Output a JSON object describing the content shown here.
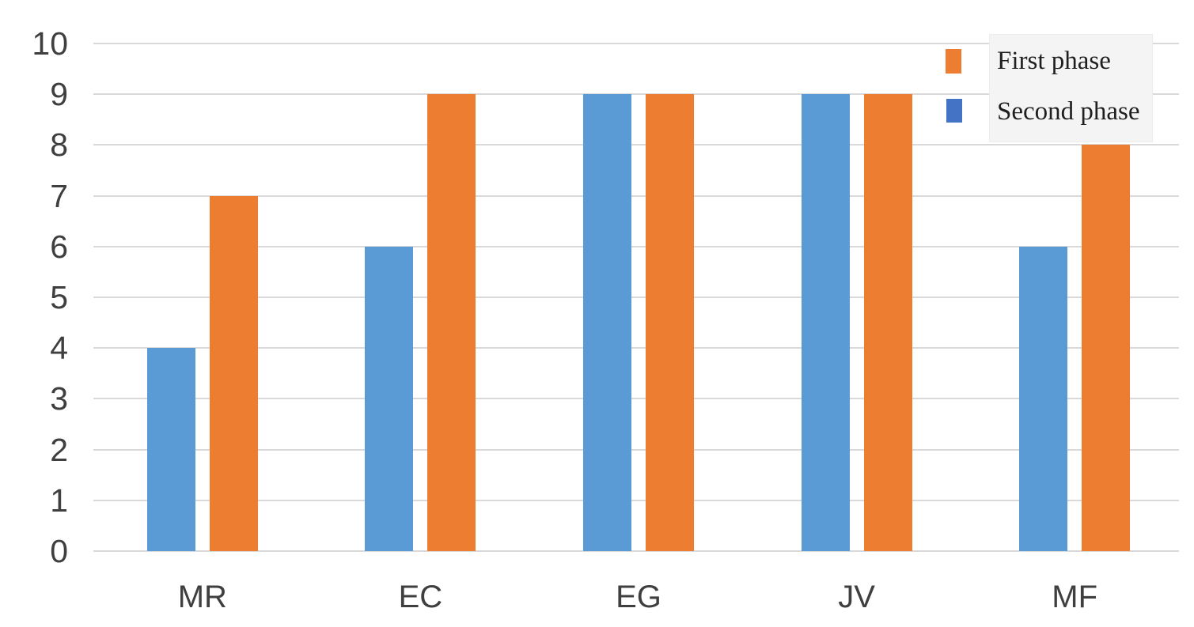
{
  "chart_data": {
    "type": "bar",
    "title": "",
    "xlabel": "",
    "ylabel": "",
    "categories": [
      "MR",
      "EC",
      "EG",
      "JV",
      "MF"
    ],
    "series": [
      {
        "name": "First phase",
        "color": "#ED7D31",
        "values": [
          7,
          9,
          9,
          9,
          8
        ]
      },
      {
        "name": "Second phase",
        "color": "#5B9BD5",
        "values": [
          4,
          6,
          9,
          9,
          6
        ]
      }
    ],
    "ylim": [
      0,
      10
    ],
    "yticks": [
      0,
      1,
      2,
      3,
      4,
      5,
      6,
      7,
      8,
      9,
      10
    ],
    "grid": "horizontal",
    "legend_position": "top-right",
    "bar_layout_note": "Second phase (blue) bar drawn left of First phase (orange) bar in each category group"
  },
  "legend": {
    "items": [
      {
        "label": "First phase",
        "marker_color": "#ED7D31"
      },
      {
        "label": "Second phase",
        "marker_color": "#4472C4"
      }
    ]
  },
  "colors": {
    "background": "#ffffff",
    "gridline": "#d9d9d9",
    "axis_text": "#3f3f3f",
    "legend_text": "#1f1f1f",
    "legend_box_bg": "#f4f4f4"
  }
}
